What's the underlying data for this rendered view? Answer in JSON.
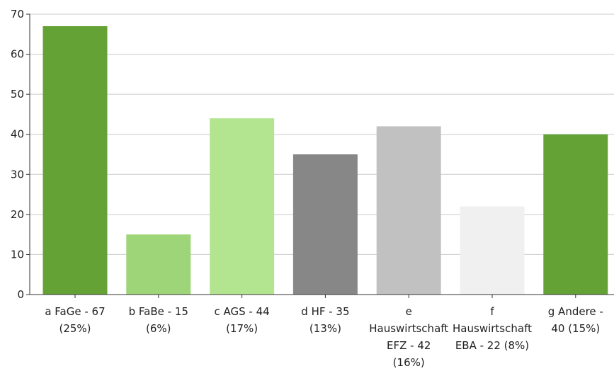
{
  "chart_data": {
    "type": "bar",
    "title": "",
    "xlabel": "",
    "ylabel": "",
    "ylim": [
      0,
      70
    ],
    "yticks": [
      0,
      10,
      20,
      30,
      40,
      50,
      60,
      70
    ],
    "grid": true,
    "legend": "none",
    "categories": [
      [
        "a FaGe - 67",
        "(25%)"
      ],
      [
        "b FaBe - 15",
        "(6%)"
      ],
      [
        "c AGS - 44",
        "(17%)"
      ],
      [
        "d HF - 35",
        "(13%)"
      ],
      [
        "e",
        "Hauswirtschaft",
        "EFZ - 42",
        "(16%)"
      ],
      [
        "f",
        "Hauswirtschaft",
        "EBA - 22 (8%)"
      ],
      [
        "g Andere -",
        "40 (15%)"
      ]
    ],
    "values": [
      67,
      15,
      44,
      35,
      42,
      22,
      40
    ],
    "colors": [
      "#64a236",
      "#9ed579",
      "#b3e591",
      "#878787",
      "#c1c1c1",
      "#f0f0f0",
      "#64a236"
    ]
  }
}
